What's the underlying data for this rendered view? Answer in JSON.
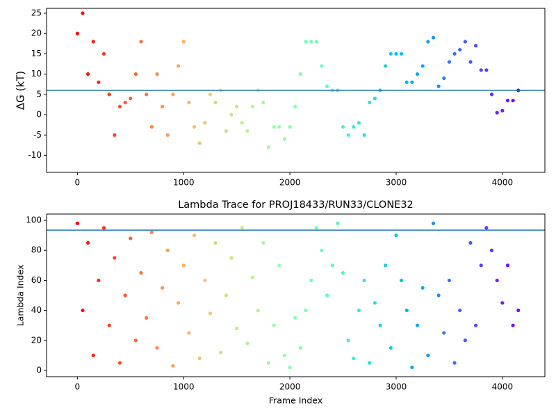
{
  "chart_data": [
    {
      "type": "scatter",
      "ylabel": "ΔG (kT)",
      "colormap": "rainbow_r",
      "x": [
        0,
        50,
        100,
        150,
        200,
        250,
        300,
        350,
        400,
        450,
        500,
        550,
        600,
        650,
        700,
        750,
        800,
        850,
        900,
        950,
        1000,
        1050,
        1100,
        1150,
        1200,
        1250,
        1300,
        1350,
        1400,
        1450,
        1500,
        1550,
        1600,
        1650,
        1700,
        1750,
        1800,
        1850,
        1900,
        1950,
        2000,
        2050,
        2100,
        2150,
        2200,
        2250,
        2300,
        2350,
        2400,
        2450,
        2500,
        2550,
        2600,
        2650,
        2700,
        2750,
        2800,
        2850,
        2900,
        2950,
        3000,
        3050,
        3100,
        3150,
        3200,
        3250,
        3300,
        3350,
        3400,
        3450,
        3500,
        3550,
        3600,
        3650,
        3700,
        3750,
        3800,
        3850,
        3900,
        3950,
        4000,
        4050,
        4100,
        4150
      ],
      "values": [
        20,
        25,
        10,
        18,
        8,
        15,
        5,
        -5,
        2,
        3,
        4,
        10,
        18,
        5,
        -3,
        10,
        2,
        -5,
        5,
        12,
        18,
        3,
        -3,
        -7,
        -2,
        5,
        3,
        6,
        -4,
        0,
        2,
        -2,
        -4,
        2,
        6,
        3,
        -8,
        -3,
        -3,
        -6,
        -3,
        2,
        10,
        18,
        18,
        18,
        12,
        7,
        6,
        6,
        -3,
        -5,
        -3,
        -2,
        -5,
        3,
        4,
        6,
        12,
        15,
        15,
        15,
        8,
        8,
        10,
        12,
        18,
        19,
        7,
        9,
        13,
        15,
        16,
        18,
        13,
        17,
        11,
        11,
        5,
        0.5,
        1,
        3.5,
        3.5,
        6
      ],
      "hline": 6.0,
      "hline_color": "#1f77b4",
      "xlim": [
        -290,
        4400
      ],
      "ylim": [
        -14.2,
        26.2
      ],
      "xticks": [
        0,
        1000,
        2000,
        3000,
        4000
      ],
      "yticks": [
        -10,
        -5,
        0,
        5,
        10,
        15,
        20,
        25
      ]
    },
    {
      "type": "scatter",
      "title": "Lambda Trace for PROJ18433/RUN33/CLONE32",
      "xlabel": "Frame Index",
      "ylabel": "Lambda Index",
      "colormap": "rainbow_r",
      "x": [
        0,
        50,
        100,
        150,
        200,
        250,
        300,
        350,
        400,
        450,
        500,
        550,
        600,
        650,
        700,
        750,
        800,
        850,
        900,
        950,
        1000,
        1050,
        1100,
        1150,
        1200,
        1250,
        1300,
        1350,
        1400,
        1450,
        1500,
        1550,
        1600,
        1650,
        1700,
        1750,
        1800,
        1850,
        1900,
        1950,
        2000,
        2050,
        2100,
        2150,
        2200,
        2250,
        2300,
        2350,
        2400,
        2450,
        2500,
        2550,
        2600,
        2650,
        2700,
        2750,
        2800,
        2850,
        2900,
        2950,
        3000,
        3050,
        3100,
        3150,
        3200,
        3250,
        3300,
        3350,
        3400,
        3450,
        3500,
        3550,
        3600,
        3650,
        3700,
        3750,
        3800,
        3850,
        3900,
        3950,
        4000,
        4050,
        4100,
        4150
      ],
      "values": [
        98,
        40,
        85,
        10,
        60,
        95,
        30,
        75,
        5,
        50,
        88,
        20,
        65,
        35,
        92,
        15,
        55,
        80,
        3,
        45,
        70,
        25,
        90,
        8,
        60,
        38,
        85,
        12,
        50,
        75,
        28,
        95,
        18,
        62,
        40,
        85,
        5,
        30,
        70,
        10,
        2,
        35,
        15,
        40,
        60,
        95,
        80,
        50,
        70,
        98,
        65,
        20,
        8,
        40,
        60,
        5,
        45,
        30,
        70,
        15,
        90,
        60,
        40,
        2,
        30,
        55,
        10,
        98,
        50,
        25,
        60,
        5,
        40,
        20,
        85,
        30,
        70,
        95,
        80,
        60,
        45,
        70,
        30,
        40
      ],
      "hline": 93.5,
      "hline_color": "#1f77b4",
      "xlim": [
        -290,
        4400
      ],
      "ylim": [
        -4.2,
        104.2
      ],
      "xticks": [
        0,
        1000,
        2000,
        3000,
        4000
      ],
      "yticks": [
        0,
        20,
        40,
        60,
        80,
        100
      ]
    }
  ]
}
